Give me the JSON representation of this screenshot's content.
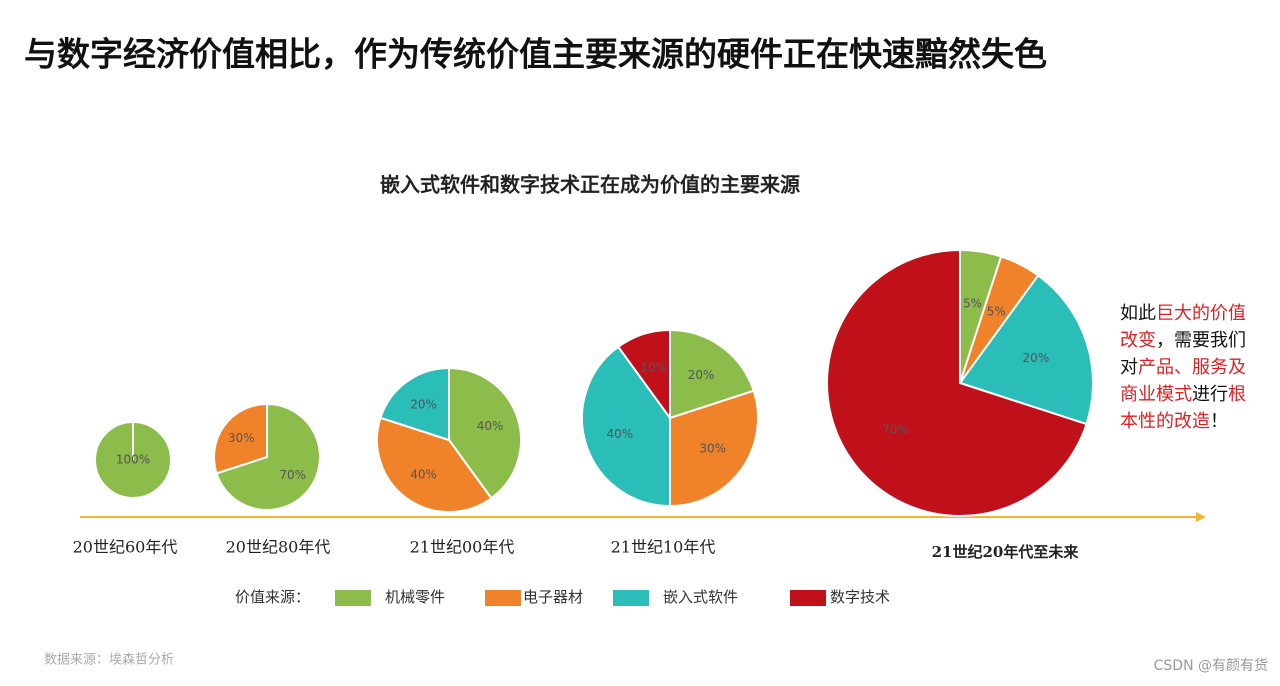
{
  "headline": "与数字经济价值相比，作为传统价值主要来源的硬件正在快速黯然失色",
  "subtitle": "嵌入式软件和数字技术正在成为价值的主要来源",
  "legend_label": "价值来源：",
  "source": "数据来源：埃森哲分析",
  "watermark": "CSDN @有颜有货",
  "note": [
    {
      "text": "如此",
      "color": "#111111"
    },
    {
      "text": "巨大的价值改变",
      "color": "#e02020"
    },
    {
      "text": "，需要我们对",
      "color": "#111111"
    },
    {
      "text": "产品、服务及商业模式",
      "color": "#e02020"
    },
    {
      "text": "进行",
      "color": "#111111"
    },
    {
      "text": "根本性的改造",
      "color": "#e02020"
    },
    {
      "text": "！",
      "color": "#111111"
    }
  ],
  "chart_data": [
    {
      "type": "pie",
      "title": "20世纪60年代",
      "categories": [
        "机械零件"
      ],
      "values": [
        100
      ],
      "value_labels": [
        "100%"
      ],
      "colors": [
        "#8cbd4a"
      ]
    },
    {
      "type": "pie",
      "title": "20世纪80年代",
      "categories": [
        "机械零件",
        "电子器材"
      ],
      "values": [
        70,
        30
      ],
      "value_labels": [
        "70%",
        "30%"
      ],
      "colors": [
        "#8cbd4a",
        "#f0832a"
      ]
    },
    {
      "type": "pie",
      "title": "21世纪00年代",
      "categories": [
        "机械零件",
        "电子器材",
        "嵌入式软件"
      ],
      "values": [
        40,
        40,
        20
      ],
      "value_labels": [
        "40%",
        "40%",
        "20%"
      ],
      "colors": [
        "#8cbd4a",
        "#f0832a",
        "#2bbdb8"
      ]
    },
    {
      "type": "pie",
      "title": "21世纪10年代",
      "categories": [
        "机械零件",
        "电子器材",
        "嵌入式软件",
        "数字技术"
      ],
      "values": [
        20,
        30,
        40,
        10
      ],
      "value_labels": [
        "20%",
        "30%",
        "40%",
        "10%"
      ],
      "colors": [
        "#8cbd4a",
        "#f0832a",
        "#2bbdb8",
        "#c0101a"
      ]
    },
    {
      "type": "pie",
      "title": "21世纪20年代至未来",
      "categories": [
        "机械零件",
        "电子器材",
        "嵌入式软件",
        "数字技术"
      ],
      "values": [
        5,
        5,
        20,
        70
      ],
      "value_labels": [
        "5%",
        "5%",
        "20%",
        "70%"
      ],
      "colors": [
        "#8cbd4a",
        "#f0832a",
        "#2bbdb8",
        "#c0101a"
      ]
    }
  ]
}
